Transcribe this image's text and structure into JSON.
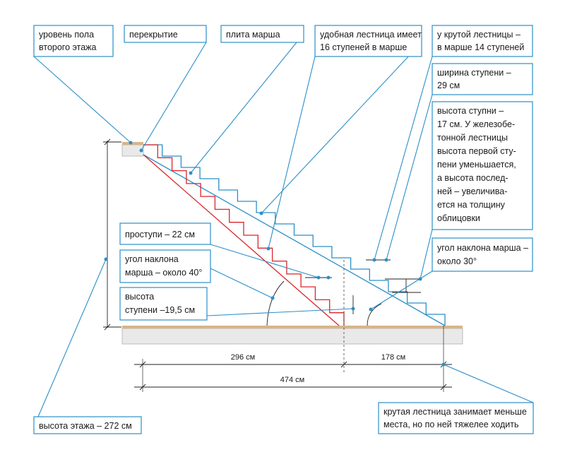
{
  "labels": {
    "floor_level": [
      "уровень пола",
      "второго этажа"
    ],
    "slab": [
      "перекрытие"
    ],
    "flight_plate": [
      "плита марша"
    ],
    "comfortable": [
      "удобная лестница имеет",
      "16 ступеней в марше"
    ],
    "steep": [
      "у крутой лестницы –",
      "в марше 14 ступеней"
    ],
    "tread_width": [
      "ширина ступени –",
      "29 см"
    ],
    "riser_height": [
      "высота ступни –",
      "17 см. У железобе-",
      "тонной лестницы",
      "высота первой сту-",
      "пени уменьшается,",
      "а высота послед-",
      "ней – увеличива-",
      "ется на толщину",
      "облицовки"
    ],
    "treads": [
      "проступи – 22 см"
    ],
    "angle_40": [
      "угол наклона",
      "марша – около 40°"
    ],
    "step_height": [
      "высота",
      "ступени –19,5 см"
    ],
    "angle_30": [
      "угол наклона марша –",
      "около 30°"
    ],
    "floor_height": [
      "высота этажа – 272 см"
    ],
    "conclusion": [
      "крутая лестница занимает меньше",
      "места, но по ней тяжелее ходить"
    ]
  },
  "dimensions": {
    "left": "296 см",
    "right": "178 см",
    "total": "474 см"
  },
  "colors": {
    "accent": "#2b8fc9",
    "steep_stair": "#d9262b",
    "floor": "#e8e8e8",
    "finish": "#d8b48a"
  }
}
